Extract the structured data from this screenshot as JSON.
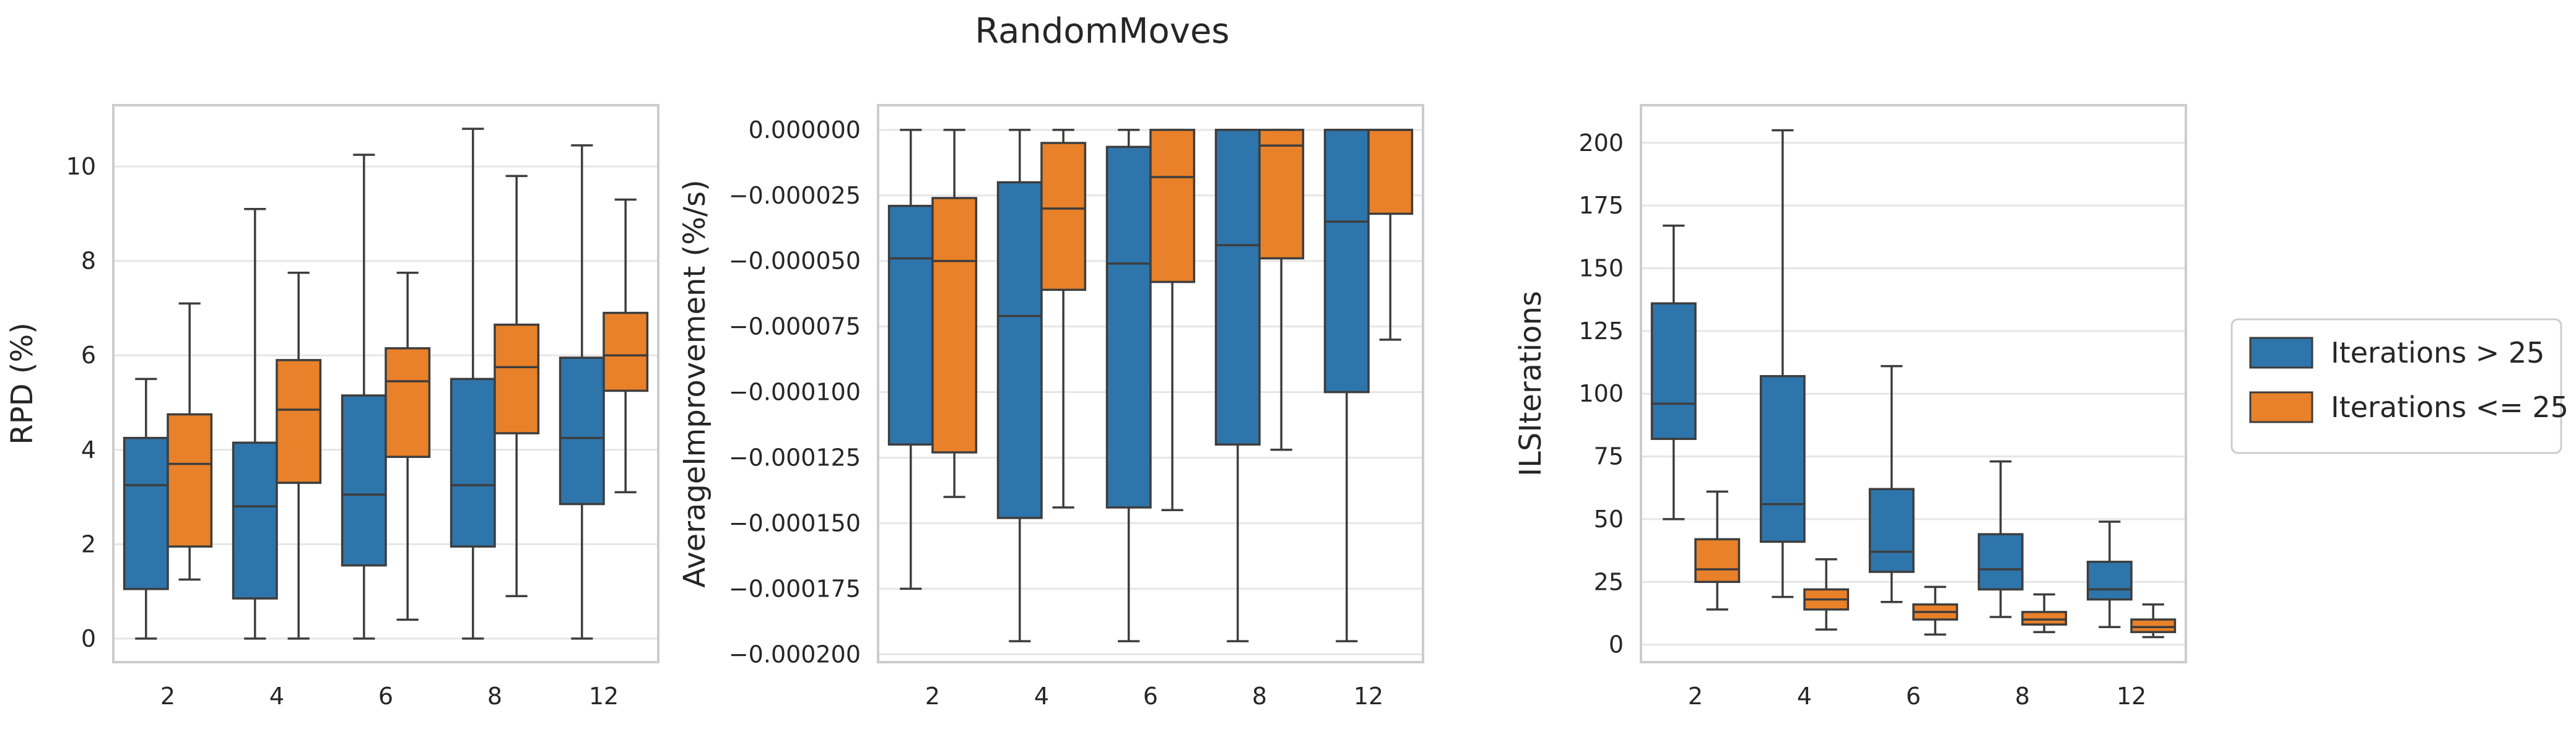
{
  "figure": {
    "title": "RandomMoves"
  },
  "colors": {
    "blue": "#2e75ab",
    "orange": "#e88129",
    "line": "#3d3d3d",
    "grid": "#e6e6e6",
    "frame": "#cccccc"
  },
  "legend": {
    "entries": [
      "Iterations > 25",
      "Iterations <= 25"
    ]
  },
  "chart_data": [
    {
      "type": "box",
      "ylabel": "RPD (%)",
      "categories": [
        "2",
        "4",
        "6",
        "8",
        "12"
      ],
      "ylim": [
        -0.5,
        11.3
      ],
      "yticks": [
        0,
        2,
        4,
        6,
        8,
        10
      ],
      "ytick_labels": [
        "0",
        "2",
        "4",
        "6",
        "8",
        "10"
      ],
      "series": [
        {
          "name": "Iterations > 25",
          "boxes": [
            {
              "whislo": 0.0,
              "q1": 1.05,
              "med": 3.25,
              "q3": 4.25,
              "whishi": 5.5
            },
            {
              "whislo": 0.0,
              "q1": 0.85,
              "med": 2.8,
              "q3": 4.15,
              "whishi": 9.1
            },
            {
              "whislo": 0.0,
              "q1": 1.55,
              "med": 3.05,
              "q3": 5.15,
              "whishi": 10.25
            },
            {
              "whislo": 0.0,
              "q1": 1.95,
              "med": 3.25,
              "q3": 5.5,
              "whishi": 10.8
            },
            {
              "whislo": 0.0,
              "q1": 2.85,
              "med": 4.25,
              "q3": 5.95,
              "whishi": 10.45
            }
          ]
        },
        {
          "name": "Iterations <= 25",
          "boxes": [
            {
              "whislo": 1.25,
              "q1": 1.95,
              "med": 3.7,
              "q3": 4.75,
              "whishi": 7.1
            },
            {
              "whislo": 0.0,
              "q1": 3.3,
              "med": 4.85,
              "q3": 5.9,
              "whishi": 7.75
            },
            {
              "whislo": 0.4,
              "q1": 3.85,
              "med": 5.45,
              "q3": 6.15,
              "whishi": 7.75
            },
            {
              "whislo": 0.9,
              "q1": 4.35,
              "med": 5.75,
              "q3": 6.65,
              "whishi": 9.8
            },
            {
              "whislo": 3.1,
              "q1": 5.25,
              "med": 6.0,
              "q3": 6.9,
              "whishi": 9.3
            }
          ]
        }
      ]
    },
    {
      "type": "box",
      "ylabel": "AverageImprovement (%/s)",
      "categories": [
        "2",
        "4",
        "6",
        "8",
        "12"
      ],
      "ylim": [
        -0.000203,
        9.4e-06
      ],
      "yticks": [
        0,
        -2.5e-05,
        -5e-05,
        -7.5e-05,
        -0.0001,
        -0.000125,
        -0.00015,
        -0.000175,
        -0.0002
      ],
      "ytick_labels": [
        "0.000000",
        "−0.000025",
        "−0.000050",
        "−0.000075",
        "−0.000100",
        "−0.000125",
        "−0.000150",
        "−0.000175",
        "−0.000200"
      ],
      "series": [
        {
          "name": "Iterations > 25",
          "boxes": [
            {
              "whislo": -0.000175,
              "q1": -0.00012,
              "med": -4.9e-05,
              "q3": -2.9e-05,
              "whishi": 0.0
            },
            {
              "whislo": -0.000195,
              "q1": -0.000148,
              "med": -7.1e-05,
              "q3": -2e-05,
              "whishi": 0.0
            },
            {
              "whislo": -0.000195,
              "q1": -0.000144,
              "med": -5.1e-05,
              "q3": -6.5e-06,
              "whishi": 0.0
            },
            {
              "whislo": -0.000195,
              "q1": -0.00012,
              "med": -4.4e-05,
              "q3": 0.0,
              "whishi": 0.0
            },
            {
              "whislo": -0.000195,
              "q1": -0.0001,
              "med": -3.5e-05,
              "q3": 0.0,
              "whishi": 0.0
            }
          ]
        },
        {
          "name": "Iterations <= 25",
          "boxes": [
            {
              "whislo": -0.00014,
              "q1": -0.000123,
              "med": -5e-05,
              "q3": -2.6e-05,
              "whishi": 0.0
            },
            {
              "whislo": -0.000144,
              "q1": -6.1e-05,
              "med": -3e-05,
              "q3": -5e-06,
              "whishi": 0.0
            },
            {
              "whislo": -0.000145,
              "q1": -5.8e-05,
              "med": -1.8e-05,
              "q3": 0.0,
              "whishi": 0.0
            },
            {
              "whislo": -0.000122,
              "q1": -4.9e-05,
              "med": -6e-06,
              "q3": 0.0,
              "whishi": 0.0
            },
            {
              "whislo": -8e-05,
              "q1": -3.2e-05,
              "med": 0.0,
              "q3": 0.0,
              "whishi": 0.0
            }
          ]
        }
      ]
    },
    {
      "type": "box",
      "ylabel": "ILSIterations",
      "categories": [
        "2",
        "4",
        "6",
        "8",
        "12"
      ],
      "ylim": [
        -7,
        215
      ],
      "yticks": [
        0,
        25,
        50,
        75,
        100,
        125,
        150,
        175,
        200
      ],
      "ytick_labels": [
        "0",
        "25",
        "50",
        "75",
        "100",
        "125",
        "150",
        "175",
        "200"
      ],
      "series": [
        {
          "name": "Iterations > 25",
          "boxes": [
            {
              "whislo": 50,
              "q1": 82,
              "med": 96,
              "q3": 136,
              "whishi": 167
            },
            {
              "whislo": 19,
              "q1": 41,
              "med": 56,
              "q3": 107,
              "whishi": 205
            },
            {
              "whislo": 17,
              "q1": 29,
              "med": 37,
              "q3": 62,
              "whishi": 111
            },
            {
              "whislo": 11,
              "q1": 22,
              "med": 30,
              "q3": 44,
              "whishi": 73
            },
            {
              "whislo": 7,
              "q1": 18,
              "med": 22,
              "q3": 33,
              "whishi": 49
            }
          ]
        },
        {
          "name": "Iterations <= 25",
          "boxes": [
            {
              "whislo": 14,
              "q1": 25,
              "med": 30,
              "q3": 42,
              "whishi": 61
            },
            {
              "whislo": 6,
              "q1": 14,
              "med": 18,
              "q3": 22,
              "whishi": 34
            },
            {
              "whislo": 4,
              "q1": 10,
              "med": 13,
              "q3": 16,
              "whishi": 23
            },
            {
              "whislo": 5,
              "q1": 8,
              "med": 10,
              "q3": 13,
              "whishi": 20
            },
            {
              "whislo": 3,
              "q1": 5,
              "med": 7,
              "q3": 10,
              "whishi": 16
            }
          ]
        }
      ]
    }
  ]
}
